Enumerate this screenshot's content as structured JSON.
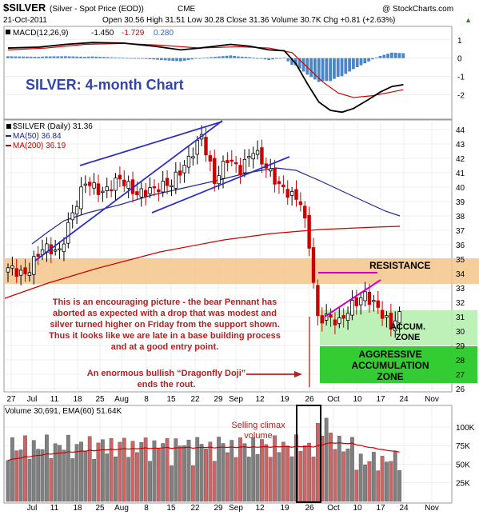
{
  "header": {
    "symbol": "$SILVER",
    "description": "(Silver - Spot Price (EOD))",
    "exchange": "CME",
    "watermark": "@ StockCharts.com",
    "date": "21-Oct-2011",
    "ohlc": "Open 30.56  High 31.51  Low 30.28  Close 31.36  Volume 30.7K  Chg +0.81 (+2.63%)",
    "ohlc_up_arrow": "▲"
  },
  "macd": {
    "label": "MACD(12,26,9)",
    "values": [
      "-1.450",
      "-1.729",
      "0.280"
    ],
    "value_colors": [
      "#000000",
      "#cc0000",
      "#3366cc"
    ],
    "y_ticks": [
      "1",
      "0",
      "-1",
      "-2"
    ],
    "lines_points": [
      [
        0,
        0.55
      ],
      [
        8,
        0.6
      ],
      [
        15,
        0.75
      ],
      [
        22,
        0.85
      ],
      [
        30,
        0.82
      ],
      [
        38,
        0.65
      ],
      [
        45,
        0.45
      ],
      [
        50,
        0.55
      ],
      [
        58,
        0.75
      ],
      [
        63,
        0.65
      ],
      [
        68,
        0.45
      ],
      [
        72,
        0.4
      ],
      [
        75,
        -0.3
      ],
      [
        78,
        -1.4
      ],
      [
        81,
        -2.4
      ],
      [
        84,
        -2.85
      ],
      [
        87,
        -2.95
      ],
      [
        90,
        -2.75
      ],
      [
        94,
        -2.25
      ],
      [
        97,
        -1.85
      ],
      [
        100,
        -1.55
      ],
      [
        103,
        -1.45
      ]
    ],
    "signal_points": [
      [
        0,
        0.45
      ],
      [
        10,
        0.55
      ],
      [
        20,
        0.75
      ],
      [
        30,
        0.8
      ],
      [
        40,
        0.7
      ],
      [
        50,
        0.55
      ],
      [
        60,
        0.62
      ],
      [
        68,
        0.55
      ],
      [
        74,
        0.3
      ],
      [
        78,
        -0.5
      ],
      [
        82,
        -1.3
      ],
      [
        86,
        -1.9
      ],
      [
        90,
        -2.15
      ],
      [
        95,
        -2.05
      ],
      [
        100,
        -1.85
      ],
      [
        103,
        -1.72
      ]
    ]
  },
  "price_panel": {
    "legend": [
      {
        "label": "$SILVER (Daily) 31.36",
        "color": "#000000"
      },
      {
        "label": "MA(50) 36.84",
        "color": "#1f2a8f"
      },
      {
        "label": "MA(200) 36.19",
        "color": "#cc0000"
      }
    ],
    "y_ticks": [
      "44",
      "43",
      "42",
      "41",
      "40",
      "39",
      "38",
      "37",
      "36",
      "35",
      "34",
      "33",
      "32",
      "31",
      "30",
      "29",
      "28",
      "27",
      "26"
    ],
    "x_ticks": [
      "27",
      "Jul",
      "11",
      "18",
      "25",
      "Aug",
      "8",
      "15",
      "22",
      "29",
      "Sep",
      "12",
      "19",
      "26",
      "Oct",
      "10",
      "17",
      "24",
      "Nov"
    ],
    "title_overlay": "SILVER: 4-month Chart",
    "resistance_label": "RESISTANCE",
    "accum_label": "ACCUM.\nZONE",
    "aggressive_label": "AGGRESSIVE\nACCUMULATION\nZONE",
    "commentary": "This is an encouraging picture - the bear Pennant has\naborted as expected with a drop that was modest and\nsilver turned higher on Friday from the support shown.\nThus it looks like we are late in a base building process\nand at a good entry point.",
    "doji_note": "An enormous bullish “Dragonfly Doji”\nends the rout."
  },
  "volume_panel": {
    "label": "Volume 30,691, EMA(60) 51.64K",
    "y_ticks": [
      "100K",
      "75K",
      "50K",
      "25K"
    ],
    "x_ticks": [
      "Jul",
      "11",
      "18",
      "25",
      "Aug",
      "8",
      "15",
      "22",
      "29",
      "Sep",
      "12",
      "19",
      "26",
      "Oct",
      "10",
      "17",
      "24",
      "Nov"
    ],
    "annotation": "Selling climax\nvolume"
  },
  "colors": {
    "up_bar": "#808080",
    "down_bar": "#cc0000",
    "ma50": "#1f2a8f",
    "ma200": "#cc0000",
    "resistance_band": "#f5c68a",
    "accum_zone": "#b7f0b0",
    "aggressive_zone": "#33cc33",
    "trend_line": "#3030c0",
    "pennant_line": "#cc00cc",
    "annotation_text": "#b22222",
    "title_text": "#3344aa"
  },
  "chart_data": {
    "type": "line",
    "title": "SILVER: 4-month Chart",
    "series": [
      {
        "name": "$SILVER (Daily) 31.36",
        "x": [
          "Jun 27",
          "Jul 5",
          "Jul 11",
          "Jul 18",
          "Jul 25",
          "Aug 1",
          "Aug 8",
          "Aug 15",
          "Aug 22",
          "Aug 29",
          "Sep 6",
          "Sep 12",
          "Sep 19",
          "Sep 26",
          "Oct 3",
          "Oct 10",
          "Oct 17",
          "Oct 21"
        ],
        "values": [
          34.5,
          35.5,
          37.5,
          40.0,
          40.3,
          40.0,
          39.8,
          40.0,
          43.5,
          42.0,
          42.5,
          41.0,
          39.5,
          30.0,
          30.5,
          31.5,
          31.0,
          31.36
        ]
      },
      {
        "name": "MA(50) 36.84",
        "x": [
          "Jun 27",
          "Jul 18",
          "Aug 8",
          "Aug 29",
          "Sep 12",
          "Sep 26",
          "Oct 21"
        ],
        "values": [
          34.0,
          36.5,
          38.0,
          39.8,
          40.8,
          39.5,
          36.84
        ]
      },
      {
        "name": "MA(200) 36.19",
        "x": [
          "Jun 27",
          "Aug 8",
          "Sep 12",
          "Oct 21"
        ],
        "values": [
          32.3,
          34.0,
          35.5,
          36.19
        ]
      }
    ],
    "volume": {
      "name": "Volume 30,691, EMA(60) 51.64K",
      "ylim": [
        0,
        115000
      ]
    },
    "ylim": [
      26,
      44.5
    ],
    "ylabel": "",
    "xlabel": ""
  }
}
